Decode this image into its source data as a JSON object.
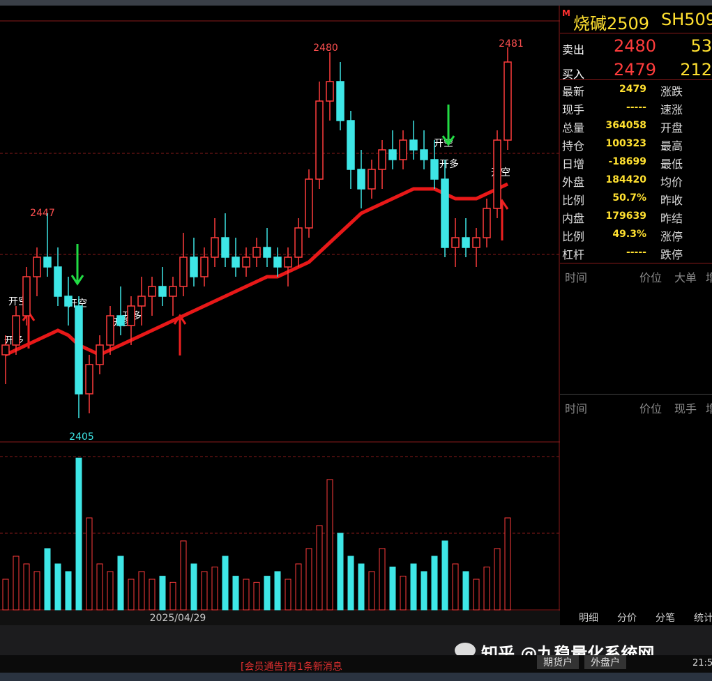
{
  "chart_data": {
    "type": "candlestick",
    "ohlc": [
      [
        2418,
        2422,
        2412,
        2420
      ],
      [
        2420,
        2428,
        2418,
        2426
      ],
      [
        2426,
        2436,
        2424,
        2434
      ],
      [
        2434,
        2440,
        2430,
        2438
      ],
      [
        2438,
        2447,
        2434,
        2436
      ],
      [
        2436,
        2440,
        2428,
        2430
      ],
      [
        2430,
        2434,
        2424,
        2428
      ],
      [
        2428,
        2430,
        2405,
        2410
      ],
      [
        2410,
        2418,
        2406,
        2416
      ],
      [
        2416,
        2422,
        2414,
        2420
      ],
      [
        2420,
        2428,
        2418,
        2426
      ],
      [
        2426,
        2432,
        2422,
        2424
      ],
      [
        2424,
        2430,
        2420,
        2428
      ],
      [
        2428,
        2434,
        2424,
        2430
      ],
      [
        2430,
        2434,
        2426,
        2432
      ],
      [
        2432,
        2436,
        2428,
        2430
      ],
      [
        2430,
        2434,
        2426,
        2432
      ],
      [
        2432,
        2443,
        2430,
        2438
      ],
      [
        2438,
        2442,
        2432,
        2434
      ],
      [
        2434,
        2440,
        2432,
        2438
      ],
      [
        2438,
        2446,
        2436,
        2442
      ],
      [
        2442,
        2447,
        2436,
        2438
      ],
      [
        2438,
        2442,
        2434,
        2436
      ],
      [
        2436,
        2440,
        2434,
        2438
      ],
      [
        2438,
        2442,
        2436,
        2440
      ],
      [
        2440,
        2444,
        2436,
        2438
      ],
      [
        2438,
        2440,
        2434,
        2436
      ],
      [
        2436,
        2440,
        2432,
        2438
      ],
      [
        2438,
        2446,
        2436,
        2444
      ],
      [
        2444,
        2456,
        2442,
        2454
      ],
      [
        2454,
        2474,
        2452,
        2470
      ],
      [
        2470,
        2480,
        2466,
        2474
      ],
      [
        2474,
        2478,
        2464,
        2466
      ],
      [
        2466,
        2468,
        2452,
        2456
      ],
      [
        2456,
        2460,
        2448,
        2452
      ],
      [
        2452,
        2458,
        2450,
        2456
      ],
      [
        2456,
        2462,
        2452,
        2460
      ],
      [
        2460,
        2464,
        2456,
        2458
      ],
      [
        2458,
        2464,
        2456,
        2462
      ],
      [
        2462,
        2466,
        2458,
        2460
      ],
      [
        2460,
        2464,
        2456,
        2458
      ],
      [
        2458,
        2462,
        2452,
        2454
      ],
      [
        2454,
        2458,
        2438,
        2440
      ],
      [
        2440,
        2446,
        2436,
        2442
      ],
      [
        2442,
        2446,
        2438,
        2440
      ],
      [
        2440,
        2444,
        2436,
        2442
      ],
      [
        2442,
        2450,
        2440,
        2448
      ],
      [
        2448,
        2464,
        2446,
        2462
      ],
      [
        2462,
        2481,
        2460,
        2478
      ]
    ],
    "ma": [
      2418,
      2419,
      2420,
      2421,
      2422,
      2423,
      2422,
      2420,
      2419,
      2418,
      2419,
      2420,
      2421,
      2422,
      2423,
      2424,
      2425,
      2426,
      2427,
      2428,
      2429,
      2430,
      2431,
      2432,
      2433,
      2434,
      2434,
      2435,
      2436,
      2437,
      2439,
      2441,
      2443,
      2445,
      2447,
      2448,
      2449,
      2450,
      2451,
      2452,
      2452,
      2452,
      2451,
      2450,
      2450,
      2450,
      2451,
      2452,
      2453
    ],
    "volume": [
      20,
      35,
      30,
      25,
      40,
      30,
      25,
      99,
      60,
      30,
      25,
      35,
      20,
      25,
      20,
      22,
      18,
      45,
      30,
      25,
      28,
      35,
      22,
      20,
      18,
      22,
      25,
      20,
      30,
      40,
      55,
      85,
      50,
      35,
      30,
      25,
      40,
      28,
      22,
      30,
      25,
      35,
      45,
      30,
      25,
      20,
      28,
      40,
      60
    ],
    "ylim": [
      2400,
      2485
    ],
    "volume_ylim": [
      0,
      100
    ],
    "up_color": "#ff3c3c",
    "down_color": "#3ee6e6",
    "ma_color": "#e81818",
    "high_labels": [
      2480,
      2447,
      2405,
      2481
    ],
    "x_label": "2025/04/29",
    "annotations": [
      "开空",
      "开多",
      "开空",
      "开多",
      "开空",
      "开多",
      "开空",
      "开多"
    ]
  },
  "quote": {
    "flag": "M",
    "name": "烧碱2509",
    "code": "SH509",
    "sell": {
      "label": "卖出",
      "price": "2480",
      "qty": "53"
    },
    "buy": {
      "label": "买入",
      "price": "2479",
      "qty": "212"
    },
    "stats": [
      [
        "最新",
        "2479",
        "涨跌"
      ],
      [
        "现手",
        "-----",
        "速涨"
      ],
      [
        "总量",
        "364058",
        "开盘"
      ],
      [
        "持仓",
        "100323",
        "最高"
      ],
      [
        "日增",
        "-18699",
        "最低"
      ],
      [
        "外盘",
        "184420",
        "均价"
      ],
      [
        "比例",
        "50.7%",
        "昨收"
      ],
      [
        "内盘",
        "179639",
        "昨结"
      ],
      [
        "比例",
        "49.3%",
        "涨停"
      ],
      [
        "杠杆",
        "-----",
        "跌停"
      ]
    ],
    "table1": [
      "时间",
      "价位",
      "大单",
      "增"
    ],
    "table2": [
      "时间",
      "价位",
      "现手",
      "增"
    ],
    "tabs": [
      "明细",
      "分价",
      "分笔",
      "统计"
    ]
  },
  "footer": {
    "watermark": "知乎 @九稳量化系统网",
    "notice": "[会员通告]有1条新消息",
    "buttons": [
      "期货户",
      "外盘户"
    ],
    "clock": "21:5"
  }
}
